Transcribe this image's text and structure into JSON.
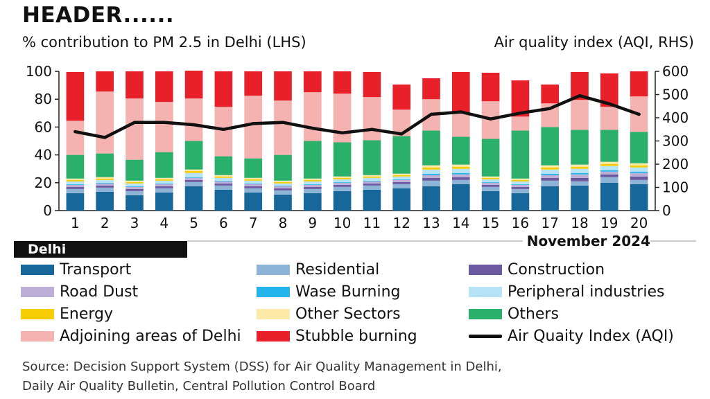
{
  "header": "HEADER......",
  "lhs_label": "% contribution to PM 2.5 in Delhi (LHS)",
  "rhs_label": "Air quality index (AQI, RHS)",
  "region": "Delhi",
  "month_label": "November 2024",
  "source_line1": "Source: Decision Support System (DSS) for Air Quality Management in Delhi,",
  "source_line2": "Daily Air Quality Bulletin, Central Pollution Control Board",
  "colors": {
    "Transport": "#17679a",
    "Residential": "#8db4d6",
    "Construction": "#6b5aa0",
    "Road Dust": "#bcaed6",
    "Wase Burning": "#22b4ea",
    "Peripheral industries": "#b7e3f7",
    "Energy": "#f6cc07",
    "Other Sectors": "#fdeaa9",
    "Others": "#2bb06c",
    "Adjoining areas of Delhi": "#f4b3b0",
    "Stubble burning": "#e8202a",
    "AQI": "#111111"
  },
  "legend": [
    {
      "key": "Transport",
      "label": "Transport"
    },
    {
      "key": "Residential",
      "label": "Residential"
    },
    {
      "key": "Construction",
      "label": "Construction"
    },
    {
      "key": "Road Dust",
      "label": "Road Dust"
    },
    {
      "key": "Wase Burning",
      "label": "Wase Burning"
    },
    {
      "key": "Peripheral industries",
      "label": "Peripheral industries"
    },
    {
      "key": "Energy",
      "label": "Energy"
    },
    {
      "key": "Other Sectors",
      "label": "Other Sectors"
    },
    {
      "key": "Others",
      "label": "Others"
    },
    {
      "key": "Adjoining areas of Delhi",
      "label": "Adjoining areas of Delhi"
    },
    {
      "key": "Stubble burning",
      "label": "Stubble burning"
    },
    {
      "key": "AQI",
      "label": "Air Quaity Index (AQI)"
    }
  ],
  "chart_data": {
    "type": "bar",
    "stacked": true,
    "title": "HEADER......",
    "xlabel": "November 2024",
    "ylabel": "% contribution to PM 2.5 in Delhi (LHS)",
    "y2label": "Air quality index (AQI, RHS)",
    "ylim": [
      0,
      100
    ],
    "y2lim": [
      0,
      600
    ],
    "yticks": [
      0,
      20,
      40,
      60,
      80,
      100
    ],
    "y2ticks": [
      0,
      100,
      200,
      300,
      400,
      500,
      600
    ],
    "categories": [
      "1",
      "2",
      "3",
      "4",
      "5",
      "6",
      "7",
      "8",
      "9",
      "10",
      "11",
      "12",
      "13",
      "14",
      "15",
      "16",
      "17",
      "18",
      "19",
      "20"
    ],
    "series": [
      {
        "name": "Transport",
        "values": [
          12.5,
          13.5,
          11,
          13,
          17.5,
          15,
          13,
          11.5,
          12.5,
          14,
          15,
          16,
          17.5,
          19,
          14,
          12.5,
          17.5,
          18,
          20,
          19
        ]
      },
      {
        "name": "Residential",
        "values": [
          3,
          3,
          3,
          3,
          3,
          3,
          3,
          3,
          3,
          3,
          3,
          3,
          4,
          3,
          3,
          3,
          4,
          3,
          4,
          3
        ]
      },
      {
        "name": "Construction",
        "values": [
          1.5,
          1.5,
          1.5,
          1.5,
          1.5,
          1.5,
          1.5,
          1.5,
          1.5,
          1.5,
          1.5,
          1.5,
          2,
          2,
          1.5,
          1.5,
          2,
          2.5,
          2,
          2.5
        ]
      },
      {
        "name": "Road Dust",
        "values": [
          1.5,
          1.5,
          1.5,
          1.5,
          1.5,
          1.5,
          1.5,
          1.5,
          1.5,
          1.5,
          1.5,
          1.5,
          2,
          2,
          1.5,
          1.5,
          2,
          2.5,
          2,
          2.5
        ]
      },
      {
        "name": "Wase Burning",
        "values": [
          0.5,
          0.5,
          0.5,
          0.5,
          0.5,
          0.5,
          0.5,
          0.5,
          0.5,
          0.5,
          0.5,
          0.5,
          1,
          1,
          0.5,
          0.5,
          1,
          1,
          1,
          1
        ]
      },
      {
        "name": "Peripheral industries",
        "values": [
          2,
          2,
          2,
          2,
          3,
          2,
          2,
          1.5,
          2,
          2,
          2,
          2,
          3,
          3,
          2,
          2,
          3,
          3,
          3,
          3
        ]
      },
      {
        "name": "Energy",
        "values": [
          1,
          1,
          1,
          1,
          1.5,
          1,
          1,
          1,
          1,
          1,
          1,
          1,
          1.5,
          1.5,
          1,
          1,
          1.5,
          1.5,
          1.5,
          1.5
        ]
      },
      {
        "name": "Other Sectors",
        "values": [
          1,
          1,
          1,
          1,
          1,
          1,
          1,
          1,
          1,
          1,
          1,
          1,
          1.5,
          1.5,
          1,
          1,
          1.5,
          1.5,
          1.5,
          1.5
        ]
      },
      {
        "name": "Others",
        "values": [
          17,
          17,
          15,
          18.5,
          20.5,
          13.5,
          14,
          18.5,
          27,
          24.5,
          25,
          27,
          25,
          20,
          27,
          34.5,
          27.5,
          25,
          23,
          22.5
        ]
      },
      {
        "name": "Adjoining areas of Delhi",
        "values": [
          24.5,
          44.5,
          44,
          36,
          30.5,
          35.5,
          45,
          39,
          35,
          35,
          31,
          19,
          22.5,
          17.5,
          27,
          10,
          17,
          21.5,
          16.5,
          25.5
        ]
      },
      {
        "name": "Stubble burning",
        "values": [
          35,
          14.5,
          19.5,
          22,
          20,
          25.5,
          17.5,
          21,
          15,
          16,
          18,
          18,
          15,
          29,
          20.5,
          26,
          13.5,
          20,
          24,
          18
        ]
      }
    ],
    "line": {
      "name": "Air Quaity Index (AQI)",
      "axis": "right",
      "values": [
        340,
        315,
        380,
        380,
        370,
        350,
        375,
        380,
        355,
        335,
        350,
        330,
        415,
        425,
        395,
        420,
        440,
        495,
        460,
        415
      ]
    }
  }
}
